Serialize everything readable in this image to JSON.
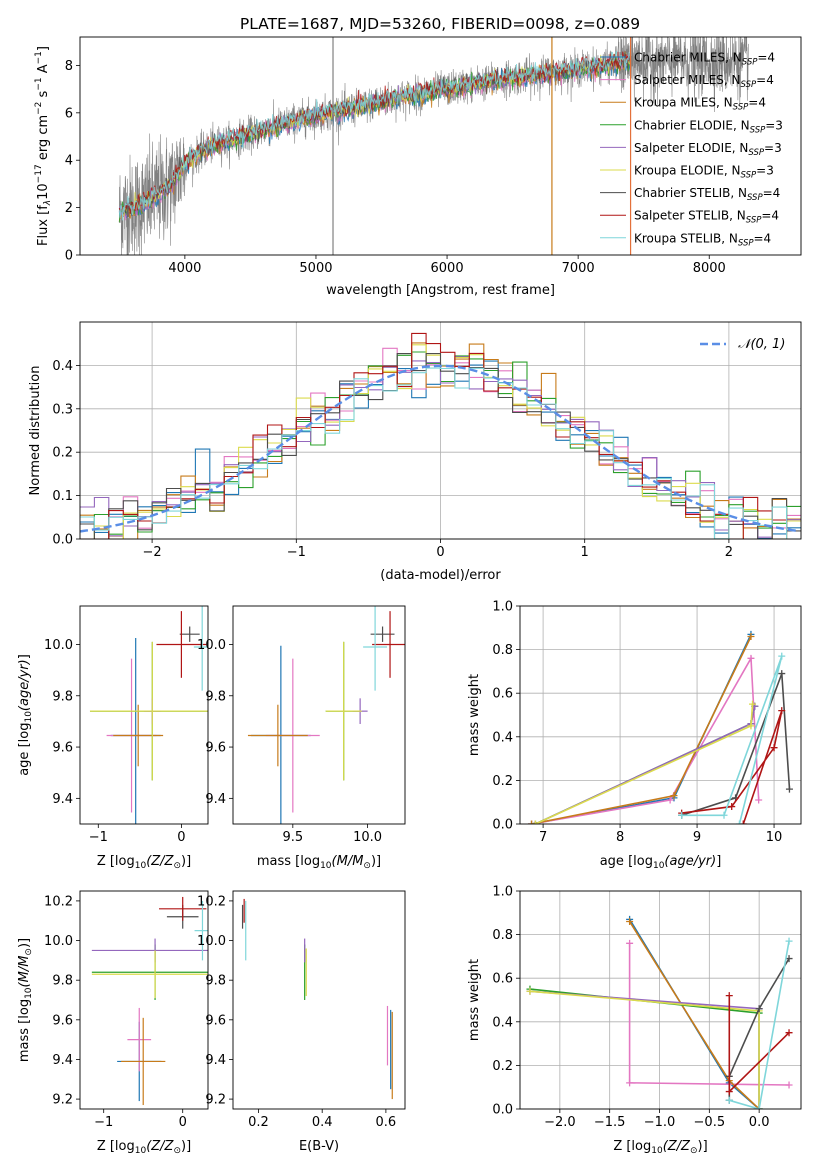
{
  "figure": {
    "title": "PLATE=1687, MJD=53260, FIBERID=0098, z=0.089",
    "colors": {
      "Chabrier MILES": "#1f77b4",
      "Salpeter MILES": "#e377c2",
      "Kroupa MILES": "#c77b1a",
      "Chabrier ELODIE": "#2ca02c",
      "Salpeter ELODIE": "#9467bd",
      "Kroupa ELODIE": "#dbdb4d",
      "Chabrier STELIB": "#4d4d4d",
      "Salpeter STELIB": "#b01515",
      "Kroupa STELIB": "#7fd6da",
      "data": "#808080",
      "gauss": "#5a8ee6"
    }
  },
  "chart_data": [
    {
      "id": "spectrum",
      "type": "line",
      "xlabel": "wavelength [Angstrom, rest frame]",
      "ylabel": "Flux [f",
      "xlim": [
        3200,
        8700
      ],
      "ylim": [
        0,
        9.2
      ],
      "xticks": [
        "4000",
        "5000",
        "6000",
        "7000",
        "8000"
      ],
      "yticks": [
        "0",
        "2",
        "4",
        "6",
        "8"
      ],
      "legend": {
        "placement": "right",
        "entries": [
          {
            "name": "Chabrier MILES, N",
            "sub": "SSP",
            "tail": "=4"
          },
          {
            "name": "Salpeter MILES, N",
            "sub": "SSP",
            "tail": "=4"
          },
          {
            "name": "Kroupa MILES, N",
            "sub": "SSP",
            "tail": "=4"
          },
          {
            "name": "Chabrier ELODIE, N",
            "sub": "SSP",
            "tail": "=3"
          },
          {
            "name": "Salpeter ELODIE, N",
            "sub": "SSP",
            "tail": "=3"
          },
          {
            "name": "Kroupa ELODIE, N",
            "sub": "SSP",
            "tail": "=3"
          },
          {
            "name": "Chabrier STELIB, N",
            "sub": "SSP",
            "tail": "=4"
          },
          {
            "name": "Salpeter STELIB, N",
            "sub": "SSP",
            "tail": "=4"
          },
          {
            "name": "Kroupa STELIB, N",
            "sub": "SSP",
            "tail": "=4"
          }
        ]
      },
      "continuum": [
        [
          3500,
          1.8
        ],
        [
          3700,
          2.2
        ],
        [
          3900,
          3.0
        ],
        [
          4000,
          3.9
        ],
        [
          4200,
          4.6
        ],
        [
          4500,
          5.1
        ],
        [
          4800,
          5.6
        ],
        [
          5000,
          5.9
        ],
        [
          5300,
          6.2
        ],
        [
          5600,
          6.6
        ],
        [
          6000,
          7.0
        ],
        [
          6400,
          7.4
        ],
        [
          6800,
          7.7
        ],
        [
          7200,
          8.0
        ],
        [
          7400,
          8.2
        ]
      ],
      "model_range": [
        3500,
        7400
      ],
      "data_range": [
        3500,
        8300
      ]
    },
    {
      "id": "residuals",
      "type": "histogram",
      "xlabel": "(data-model)/error",
      "ylabel": "Normed distribution",
      "xlim": [
        -2.5,
        2.5
      ],
      "ylim": [
        0,
        0.5
      ],
      "xticks": [
        "−2",
        "−1",
        "0",
        "1",
        "2"
      ],
      "yticks": [
        "0.0",
        "0.1",
        "0.2",
        "0.3",
        "0.4"
      ],
      "legend": {
        "placement": "top-right",
        "label": "𝒩(0, 1)"
      },
      "bin_width": 0.1,
      "grid": true
    },
    {
      "id": "age-vs-Z",
      "type": "errorbar",
      "xlabel": "Z [log",
      "ylabel": "age  [log",
      "xlim": [
        -1.22,
        0.32
      ],
      "ylim": [
        9.3,
        10.15
      ],
      "xticks": [
        "−1",
        "0"
      ],
      "yticks": [
        "9.4",
        "9.6",
        "9.8",
        "10.0"
      ],
      "points": [
        {
          "model": "Chabrier MILES",
          "x": -0.55,
          "xerr": 0.3,
          "y": 9.645,
          "yerr": 0.38
        },
        {
          "model": "Salpeter MILES",
          "x": -0.6,
          "xerr": 0.3,
          "y": 9.645,
          "yerr": 0.3
        },
        {
          "model": "Kroupa MILES",
          "x": -0.52,
          "xerr": 0.3,
          "y": 9.645,
          "yerr": 0.12
        },
        {
          "model": "Chabrier ELODIE",
          "x": -0.35,
          "xerr": 0.75,
          "y": 9.74,
          "yerr": 0.27
        },
        {
          "model": "Salpeter ELODIE",
          "x": -0.35,
          "xerr": 0.1,
          "y": 9.74,
          "yerr": 0.05
        },
        {
          "model": "Kroupa ELODIE",
          "x": -0.35,
          "xerr": 0.75,
          "y": 9.74,
          "yerr": 0.27
        },
        {
          "model": "Chabrier STELIB",
          "x": 0.1,
          "xerr": 0.12,
          "y": 10.04,
          "yerr": 0.03
        },
        {
          "model": "Salpeter STELIB",
          "x": 0.0,
          "xerr": 0.3,
          "y": 10.0,
          "yerr": 0.13
        },
        {
          "model": "Kroupa STELIB",
          "x": 0.25,
          "xerr": 0.1,
          "y": 9.99,
          "yerr": 0.17
        }
      ]
    },
    {
      "id": "age-vs-mass",
      "type": "errorbar",
      "xlabel": "mass [log",
      "ylabel": "",
      "xlim": [
        9.1,
        10.25
      ],
      "ylim": [
        9.3,
        10.15
      ],
      "xticks": [
        "9.5",
        "10.0"
      ],
      "yticks": [
        "9.4",
        "9.6",
        "9.8",
        "10.0"
      ],
      "points": [
        {
          "model": "Chabrier MILES",
          "x": 9.42,
          "xerr": 0.2,
          "y": 9.645,
          "yerr": 0.35
        },
        {
          "model": "Salpeter MILES",
          "x": 9.5,
          "xerr": 0.18,
          "y": 9.645,
          "yerr": 0.3
        },
        {
          "model": "Kroupa MILES",
          "x": 9.4,
          "xerr": 0.2,
          "y": 9.645,
          "yerr": 0.12
        },
        {
          "model": "Chabrier ELODIE",
          "x": 9.84,
          "xerr": 0.12,
          "y": 9.74,
          "yerr": 0.27
        },
        {
          "model": "Salpeter ELODIE",
          "x": 9.95,
          "xerr": 0.05,
          "y": 9.74,
          "yerr": 0.05
        },
        {
          "model": "Kroupa ELODIE",
          "x": 9.84,
          "xerr": 0.12,
          "y": 9.74,
          "yerr": 0.27
        },
        {
          "model": "Chabrier STELIB",
          "x": 10.1,
          "xerr": 0.08,
          "y": 10.04,
          "yerr": 0.03
        },
        {
          "model": "Salpeter STELIB",
          "x": 10.15,
          "xerr": 0.12,
          "y": 10.0,
          "yerr": 0.13
        },
        {
          "model": "Kroupa STELIB",
          "x": 10.05,
          "xerr": 0.08,
          "y": 9.99,
          "yerr": 0.17
        }
      ]
    },
    {
      "id": "weight-vs-age",
      "type": "line",
      "xlabel": "age  [log",
      "ylabel": "mass weight",
      "xlim": [
        6.7,
        10.35
      ],
      "ylim": [
        0,
        1.0
      ],
      "xticks": [
        "7",
        "8",
        "9",
        "10"
      ],
      "yticks": [
        "0.0",
        "0.2",
        "0.4",
        "0.6",
        "0.8",
        "1.0"
      ],
      "grid": true,
      "series": [
        {
          "model": "Chabrier MILES",
          "points": [
            [
              6.85,
              0.0
            ],
            [
              8.7,
              0.12
            ],
            [
              9.7,
              0.87
            ]
          ]
        },
        {
          "model": "Salpeter MILES",
          "points": [
            [
              6.85,
              0.0
            ],
            [
              8.65,
              0.11
            ],
            [
              9.7,
              0.76
            ],
            [
              9.8,
              0.11
            ]
          ]
        },
        {
          "model": "Kroupa MILES",
          "points": [
            [
              6.85,
              0.0
            ],
            [
              8.7,
              0.13
            ],
            [
              9.7,
              0.86
            ]
          ]
        },
        {
          "model": "Chabrier ELODIE",
          "points": [
            [
              6.9,
              0.0
            ],
            [
              9.7,
              0.46
            ],
            [
              9.75,
              0.54
            ]
          ]
        },
        {
          "model": "Salpeter ELODIE",
          "points": [
            [
              6.9,
              0.0
            ],
            [
              9.7,
              0.46
            ],
            [
              9.75,
              0.54
            ]
          ]
        },
        {
          "model": "Kroupa ELODIE",
          "points": [
            [
              6.9,
              0.0
            ],
            [
              9.7,
              0.45
            ],
            [
              9.72,
              0.55
            ]
          ]
        },
        {
          "model": "Chabrier STELIB",
          "points": [
            [
              8.8,
              0.04
            ],
            [
              9.5,
              0.12
            ],
            [
              10.1,
              0.69
            ],
            [
              10.2,
              0.16
            ]
          ]
        },
        {
          "model": "Salpeter STELIB",
          "points": [
            [
              8.8,
              0.05
            ],
            [
              9.45,
              0.08
            ],
            [
              10.0,
              0.35
            ],
            [
              10.1,
              0.52
            ],
            [
              9.6,
              0.0
            ]
          ]
        },
        {
          "model": "Kroupa STELIB",
          "points": [
            [
              8.8,
              0.04
            ],
            [
              9.35,
              0.04
            ],
            [
              10.1,
              0.77
            ],
            [
              9.55,
              0.0
            ]
          ]
        }
      ]
    },
    {
      "id": "mass-vs-Z",
      "type": "errorbar",
      "xlabel": "Z [log",
      "ylabel": "mass [log",
      "xlim": [
        -1.3,
        0.32
      ],
      "ylim": [
        9.15,
        10.25
      ],
      "xticks": [
        "−1",
        "0"
      ],
      "yticks": [
        "9.2",
        "9.4",
        "9.6",
        "9.8",
        "10.0",
        "10.2"
      ],
      "points": [
        {
          "model": "Chabrier MILES",
          "x": -0.55,
          "xerr": 0.28,
          "y": 9.39,
          "yerr": 0.2
        },
        {
          "model": "Salpeter MILES",
          "x": -0.55,
          "xerr": 0.15,
          "y": 9.5,
          "yerr": 0.16
        },
        {
          "model": "Kroupa MILES",
          "x": -0.5,
          "xerr": 0.28,
          "y": 9.39,
          "yerr": 0.22
        },
        {
          "model": "Chabrier ELODIE",
          "x": -0.35,
          "xerr": 0.8,
          "y": 9.84,
          "yerr": 0.14
        },
        {
          "model": "Salpeter ELODIE",
          "x": -0.35,
          "xerr": 0.8,
          "y": 9.95,
          "yerr": 0.06
        },
        {
          "model": "Kroupa ELODIE",
          "x": -0.35,
          "xerr": 0.8,
          "y": 9.83,
          "yerr": 0.12
        },
        {
          "model": "Chabrier STELIB",
          "x": 0.0,
          "xerr": 0.2,
          "y": 10.12,
          "yerr": 0.06
        },
        {
          "model": "Salpeter STELIB",
          "x": 0.0,
          "xerr": 0.3,
          "y": 10.16,
          "yerr": 0.06
        },
        {
          "model": "Kroupa STELIB",
          "x": 0.25,
          "xerr": 0.1,
          "y": 10.05,
          "yerr": 0.15
        }
      ]
    },
    {
      "id": "mass-vs-ebv",
      "type": "errorbar",
      "xlabel": "E(B-V)",
      "ylabel": "",
      "xlim": [
        0.12,
        0.66
      ],
      "ylim": [
        9.15,
        10.25
      ],
      "xticks": [
        "0.2",
        "0.4",
        "0.6"
      ],
      "yticks": [
        "9.2",
        "9.4",
        "9.6",
        "9.8",
        "10.0",
        "10.2"
      ],
      "points": [
        {
          "model": "Chabrier MILES",
          "x": 0.615,
          "xerr": 0.0,
          "y": 9.45,
          "yerr": 0.2
        },
        {
          "model": "Salpeter MILES",
          "x": 0.605,
          "xerr": 0.0,
          "y": 9.52,
          "yerr": 0.15
        },
        {
          "model": "Kroupa MILES",
          "x": 0.62,
          "xerr": 0.0,
          "y": 9.42,
          "yerr": 0.22
        },
        {
          "model": "Chabrier ELODIE",
          "x": 0.345,
          "xerr": 0.0,
          "y": 9.84,
          "yerr": 0.14
        },
        {
          "model": "Salpeter ELODIE",
          "x": 0.345,
          "xerr": 0.0,
          "y": 9.95,
          "yerr": 0.06
        },
        {
          "model": "Kroupa ELODIE",
          "x": 0.35,
          "xerr": 0.0,
          "y": 9.84,
          "yerr": 0.12
        },
        {
          "model": "Chabrier STELIB",
          "x": 0.15,
          "xerr": 0.0,
          "y": 10.12,
          "yerr": 0.06
        },
        {
          "model": "Salpeter STELIB",
          "x": 0.155,
          "xerr": 0.0,
          "y": 10.15,
          "yerr": 0.06
        },
        {
          "model": "Kroupa STELIB",
          "x": 0.16,
          "xerr": 0.0,
          "y": 10.05,
          "yerr": 0.15
        }
      ]
    },
    {
      "id": "weight-vs-Z",
      "type": "line",
      "xlabel": "Z [log",
      "ylabel": "mass weight",
      "xlim": [
        -2.4,
        0.42
      ],
      "ylim": [
        0,
        1.0
      ],
      "xticks": [
        "−2.0",
        "−1.5",
        "−1.0",
        "−0.5",
        "0.0"
      ],
      "yticks": [
        "0.0",
        "0.2",
        "0.4",
        "0.6",
        "0.8",
        "1.0"
      ],
      "grid": true,
      "series": [
        {
          "model": "Chabrier MILES",
          "points": [
            [
              -1.3,
              0.87
            ],
            [
              -0.3,
              0.12
            ],
            [
              0.0,
              0.0
            ]
          ]
        },
        {
          "model": "Salpeter MILES",
          "points": [
            [
              -1.3,
              0.76
            ],
            [
              -1.3,
              0.12
            ],
            [
              0.3,
              0.11
            ]
          ]
        },
        {
          "model": "Kroupa MILES",
          "points": [
            [
              -1.3,
              0.86
            ],
            [
              -0.3,
              0.13
            ],
            [
              0.0,
              0.0
            ]
          ]
        },
        {
          "model": "Chabrier ELODIE",
          "points": [
            [
              -2.3,
              0.55
            ],
            [
              0.0,
              0.44
            ],
            [
              0.0,
              0.0
            ]
          ]
        },
        {
          "model": "Salpeter ELODIE",
          "points": [
            [
              -2.3,
              0.54
            ],
            [
              0.0,
              0.46
            ],
            [
              0.0,
              0.0
            ]
          ]
        },
        {
          "model": "Kroupa ELODIE",
          "points": [
            [
              -2.3,
              0.54
            ],
            [
              0.0,
              0.45
            ],
            [
              0.0,
              0.0
            ]
          ]
        },
        {
          "model": "Chabrier STELIB",
          "points": [
            [
              -0.3,
              0.04
            ],
            [
              -0.3,
              0.15
            ],
            [
              0.0,
              0.46
            ],
            [
              0.3,
              0.69
            ]
          ]
        },
        {
          "model": "Salpeter STELIB",
          "points": [
            [
              -0.3,
              0.52
            ],
            [
              -0.3,
              0.08
            ],
            [
              0.3,
              0.35
            ]
          ]
        },
        {
          "model": "Kroupa STELIB",
          "points": [
            [
              -0.3,
              0.04
            ],
            [
              0.0,
              0.0
            ],
            [
              0.3,
              0.77
            ]
          ]
        }
      ]
    }
  ]
}
